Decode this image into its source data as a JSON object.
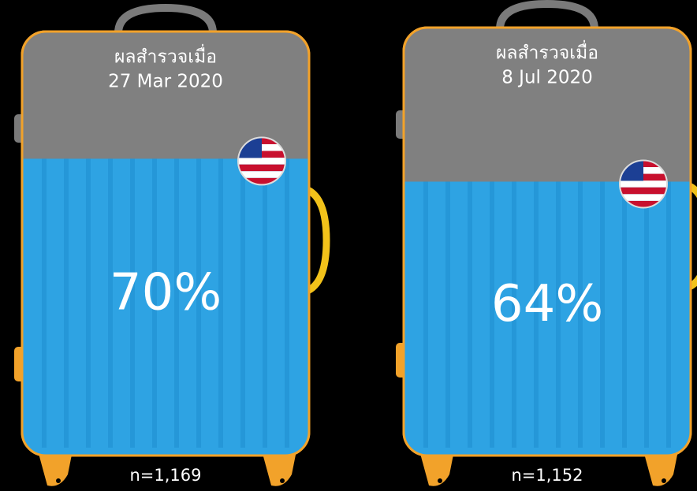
{
  "chart_data": [
    {
      "type": "fill",
      "title": "ผลสำรวจเมื่อ",
      "subtitle": "27 Mar 2020",
      "values": [
        70
      ],
      "value_labels": [
        "70%"
      ],
      "ylim": [
        0,
        100
      ],
      "note": "n=1,169",
      "color": "#2ea3e3"
    },
    {
      "type": "fill",
      "title": "ผลสำรวจเมื่อ",
      "subtitle": "8 Jul 2020",
      "values": [
        64
      ],
      "value_labels": [
        "64%"
      ],
      "ylim": [
        0,
        100
      ],
      "note": "n=1,152",
      "color": "#2ea3e3"
    }
  ]
}
